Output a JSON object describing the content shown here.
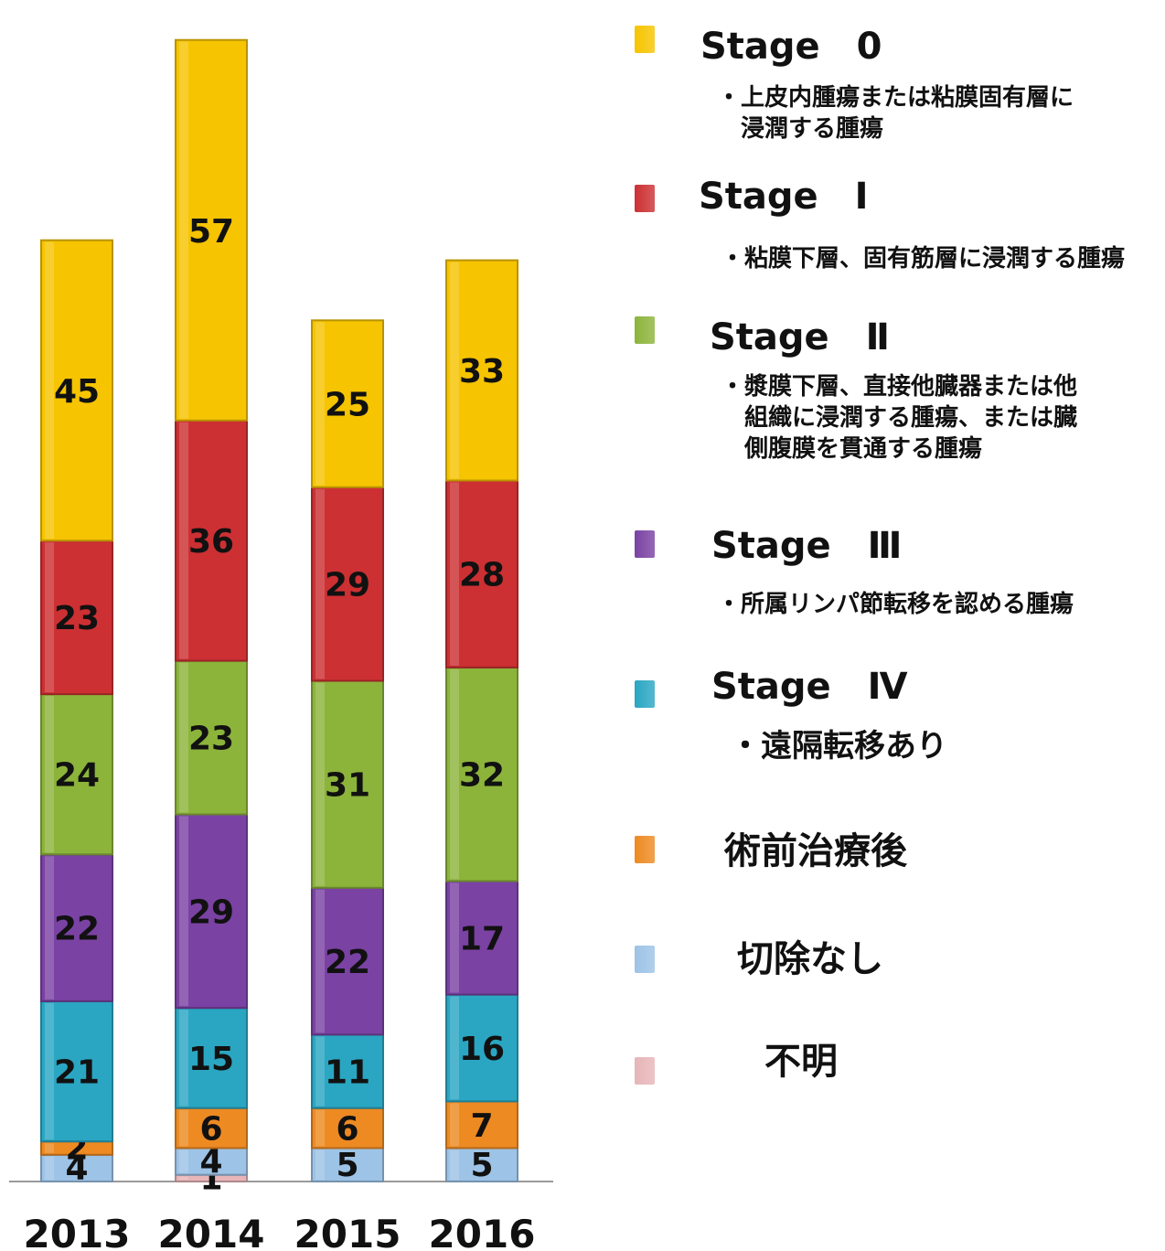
{
  "chart_data": {
    "type": "bar",
    "stacked": true,
    "categories": [
      "2013",
      "2014",
      "2015",
      "2016"
    ],
    "series": [
      {
        "name": "不明",
        "color": "#e7b5b8",
        "values": [
          0,
          1,
          0,
          0
        ],
        "labels": [
          "",
          "1",
          "",
          ""
        ]
      },
      {
        "name": "切除なし",
        "color": "#9dc3e6",
        "values": [
          4,
          4,
          5,
          5
        ],
        "labels": [
          "4",
          "4",
          "5",
          "5"
        ]
      },
      {
        "name": "術前治療後",
        "color": "#ed8a22",
        "values": [
          2,
          6,
          6,
          7
        ],
        "labels": [
          "2",
          "6",
          "6",
          "7"
        ]
      },
      {
        "name": "Stage Ⅳ",
        "color": "#2aa6c2",
        "values": [
          21,
          15,
          11,
          16
        ],
        "labels": [
          "21",
          "15",
          "11",
          "16"
        ]
      },
      {
        "name": "Stage Ⅲ",
        "color": "#7a42a3",
        "values": [
          22,
          29,
          22,
          17
        ],
        "labels": [
          "22",
          "29",
          "22",
          "17"
        ]
      },
      {
        "name": "Stage Ⅱ",
        "color": "#8cb43b",
        "values": [
          24,
          23,
          31,
          32
        ],
        "labels": [
          "24",
          "23",
          "31",
          "32"
        ]
      },
      {
        "name": "Stage Ⅰ",
        "color": "#cc3033",
        "values": [
          23,
          36,
          29,
          28
        ],
        "labels": [
          "23",
          "36",
          "29",
          "28"
        ]
      },
      {
        "name": "Stage 0",
        "color": "#f6c400",
        "values": [
          45,
          57,
          25,
          33
        ],
        "labels": [
          "45",
          "57",
          "25",
          "33"
        ]
      }
    ],
    "title": "",
    "xlabel": "",
    "ylabel": "",
    "ylim": [
      0,
      170
    ],
    "grid": false,
    "legend_position": "right"
  },
  "legend": {
    "stage0": {
      "name": "Stage　0",
      "desc": "・上皮内腫瘍または粘膜固有層に\n　浸潤する腫瘍",
      "color": "#f6c400"
    },
    "stage1": {
      "name": "Stage　Ⅰ",
      "desc": "・粘膜下層、固有筋層に浸潤する腫瘍",
      "color": "#cc3033"
    },
    "stage2": {
      "name": "Stage　Ⅱ",
      "desc": "・漿膜下層、直接他臓器または他\n　組織に浸潤する腫瘍、または臓\n　側腹膜を貫通する腫瘍",
      "color": "#8cb43b"
    },
    "stage3": {
      "name": "Stage　Ⅲ",
      "desc": "・所属リンパ節転移を認める腫瘍",
      "color": "#7a42a3"
    },
    "stage4": {
      "name": "Stage　Ⅳ",
      "desc": "・遠隔転移あり",
      "color": "#2aa6c2"
    },
    "preop": {
      "name": "術前治療後",
      "color": "#ed8a22"
    },
    "noresect": {
      "name": "切除なし",
      "color": "#9dc3e6"
    },
    "unknown": {
      "name": "不明",
      "color": "#e7b5b8"
    }
  }
}
